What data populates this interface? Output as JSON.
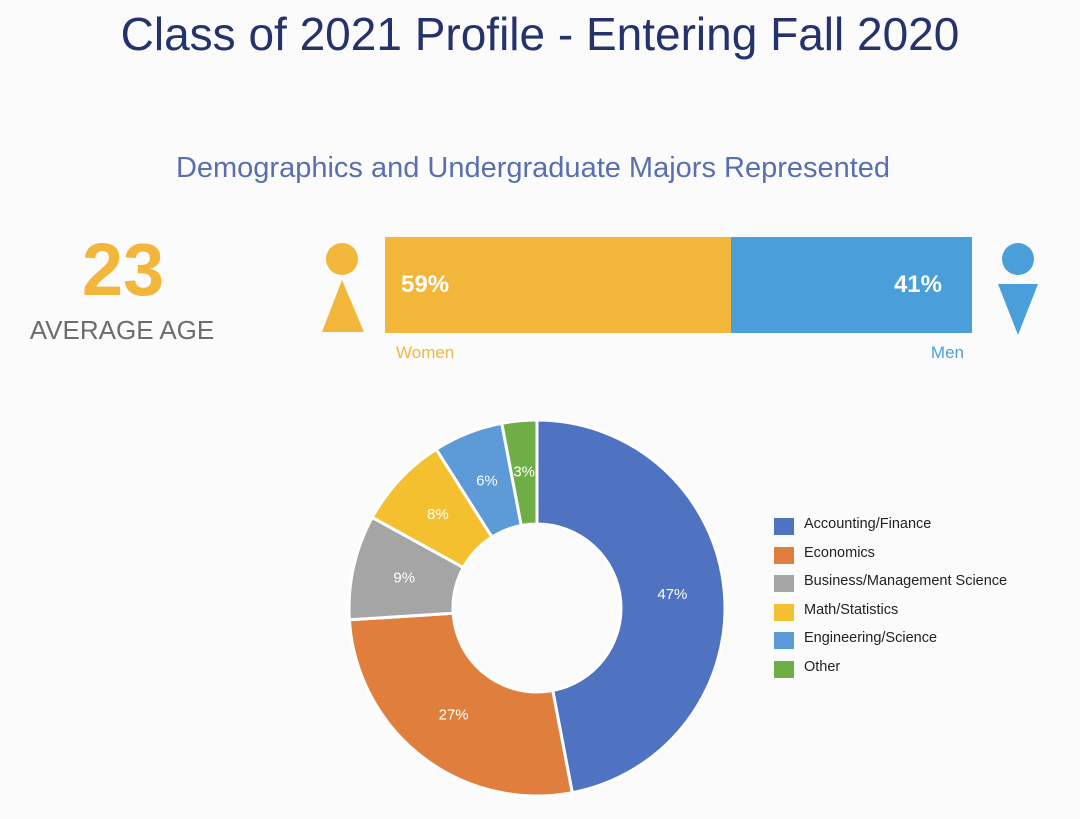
{
  "header": {
    "title": "Class of 2021 Profile - Entering Fall 2020",
    "subtitle": "Demographics and Undergraduate Majors Represented"
  },
  "age": {
    "value": "23",
    "label": "AVERAGE AGE"
  },
  "gender": {
    "women": {
      "percent_label": "59%",
      "label": "Women",
      "value": 59,
      "color": "#f2b63b"
    },
    "men": {
      "percent_label": "41%",
      "label": "Men",
      "value": 41,
      "color": "#4a9fdb"
    }
  },
  "icons": [
    "female-icon",
    "male-icon"
  ],
  "chart_data": {
    "type": "pie",
    "variant": "donut",
    "categories": [
      "Accounting/Finance",
      "Economics",
      "Business/Management Science",
      "Math/Statistics",
      "Engineering/Science",
      "Other"
    ],
    "values": [
      47,
      27,
      9,
      8,
      6,
      3
    ],
    "labels": [
      "47%",
      "27%",
      "9%",
      "8%",
      "6%",
      "3%"
    ],
    "colors": [
      "#4f72c1",
      "#e07f3d",
      "#a5a5a5",
      "#f4c030",
      "#5c9ad8",
      "#6fad47"
    ],
    "legend_position": "right"
  }
}
